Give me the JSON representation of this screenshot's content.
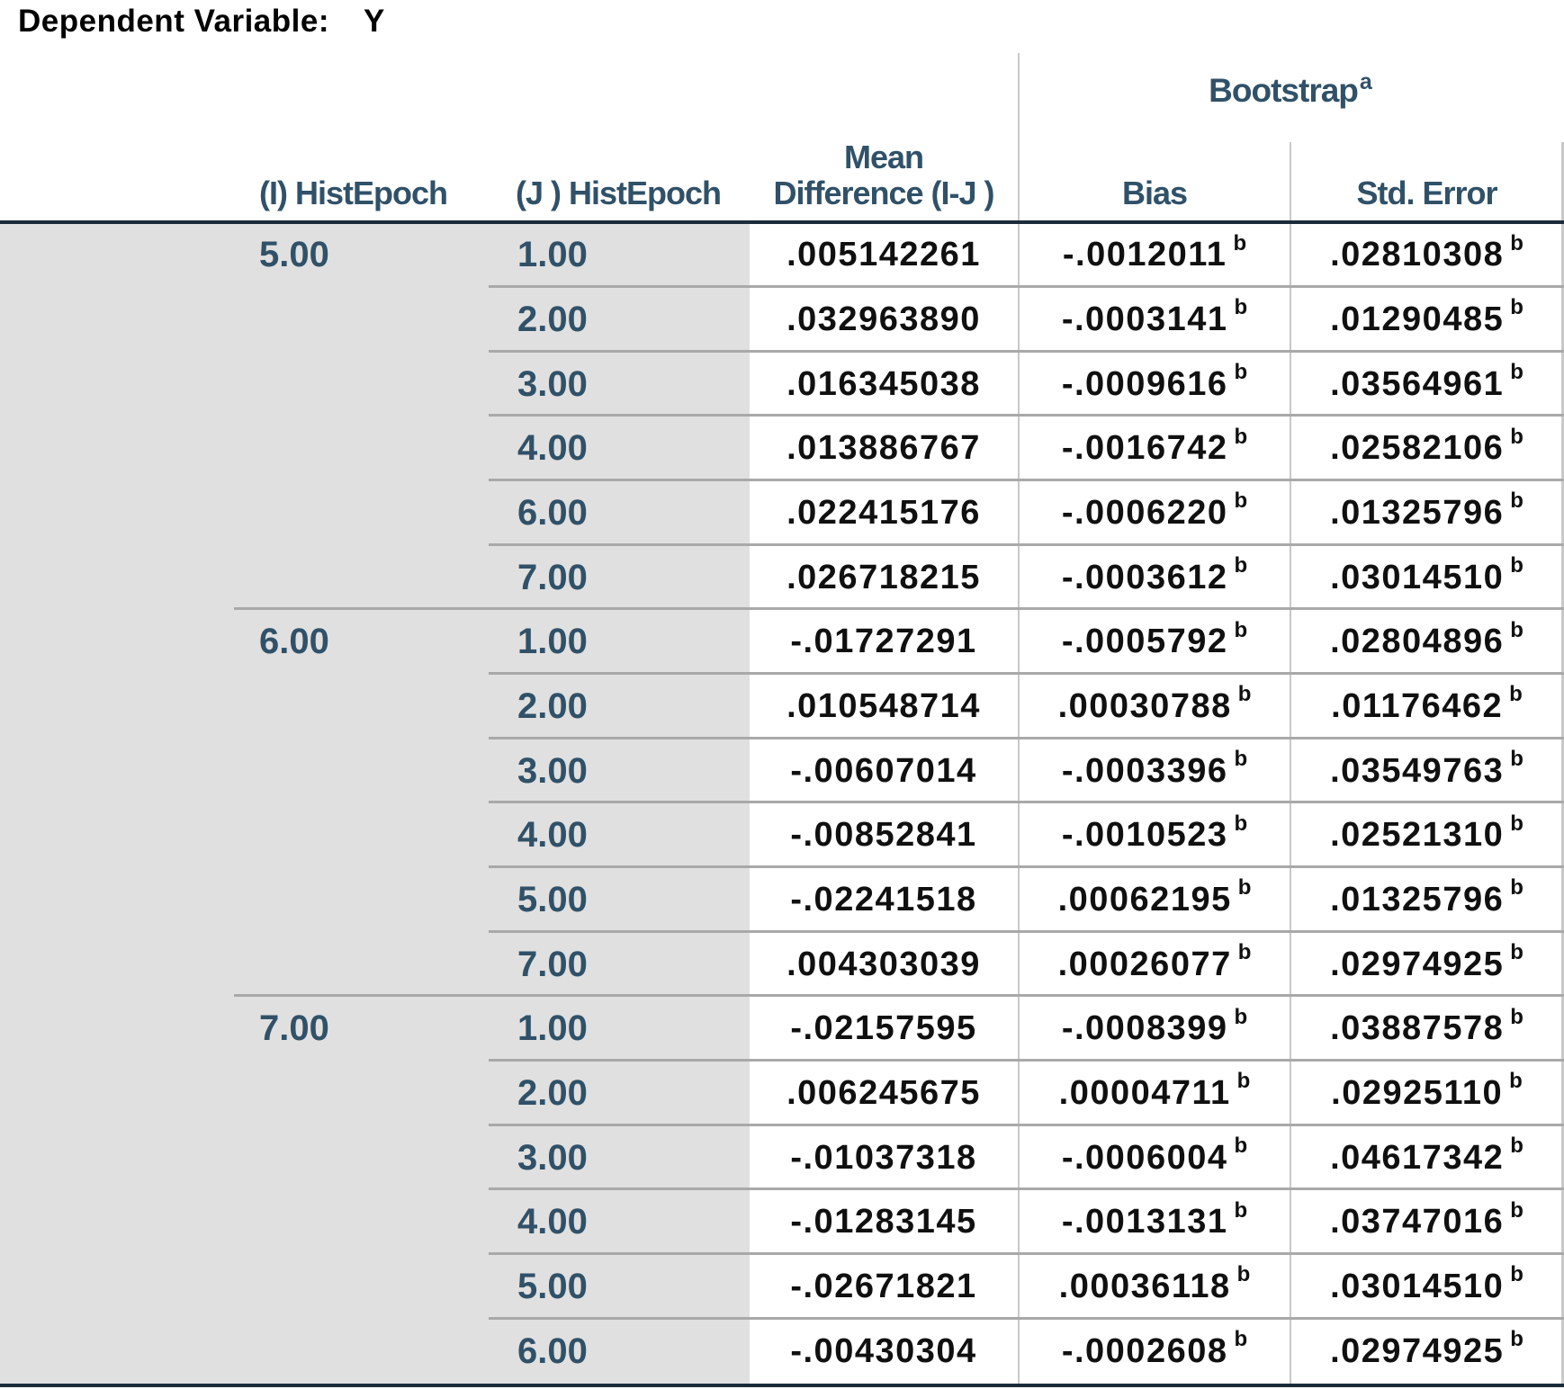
{
  "colors": {
    "header_text": "#305168",
    "data_text": "#101010",
    "title_text": "#000000",
    "row_header_bg": "#e0e0e0",
    "thick_line": "#1b2b3a",
    "thin_line": "#a9a9a9",
    "light_line": "#c9c9c9",
    "page_bg": "#ffffff"
  },
  "title": {
    "label": "Dependent Variable:",
    "value": "Y"
  },
  "table": {
    "headers": {
      "bootstrap": "Bootstrap",
      "bootstrap_footnote": "a",
      "i_col": "(I) HistEpoch",
      "j_col": "(J ) HistEpoch",
      "mean_line1": "Mean",
      "mean_line2": "Difference (I-J )",
      "bias": "Bias",
      "std_error": "Std. Error"
    },
    "footnote_marker": "b",
    "groups": [
      {
        "i": "5.00",
        "rows": [
          {
            "j": "1.00",
            "mean_diff": ".005142261",
            "bias": "-.0012011",
            "bias_sup": "b",
            "std_error": ".02810308",
            "std_sup": "b"
          },
          {
            "j": "2.00",
            "mean_diff": ".032963890",
            "bias": "-.0003141",
            "bias_sup": "b",
            "std_error": ".01290485",
            "std_sup": "b"
          },
          {
            "j": "3.00",
            "mean_diff": ".016345038",
            "bias": "-.0009616",
            "bias_sup": "b",
            "std_error": ".03564961",
            "std_sup": "b"
          },
          {
            "j": "4.00",
            "mean_diff": ".013886767",
            "bias": "-.0016742",
            "bias_sup": "b",
            "std_error": ".02582106",
            "std_sup": "b"
          },
          {
            "j": "6.00",
            "mean_diff": ".022415176",
            "bias": "-.0006220",
            "bias_sup": "b",
            "std_error": ".01325796",
            "std_sup": "b"
          },
          {
            "j": "7.00",
            "mean_diff": ".026718215",
            "bias": "-.0003612",
            "bias_sup": "b",
            "std_error": ".03014510",
            "std_sup": "b"
          }
        ]
      },
      {
        "i": "6.00",
        "rows": [
          {
            "j": "1.00",
            "mean_diff": "-.01727291",
            "bias": "-.0005792",
            "bias_sup": "b",
            "std_error": ".02804896",
            "std_sup": "b"
          },
          {
            "j": "2.00",
            "mean_diff": ".010548714",
            "bias": ".00030788",
            "bias_sup": "b",
            "std_error": ".01176462",
            "std_sup": "b"
          },
          {
            "j": "3.00",
            "mean_diff": "-.00607014",
            "bias": "-.0003396",
            "bias_sup": "b",
            "std_error": ".03549763",
            "std_sup": "b"
          },
          {
            "j": "4.00",
            "mean_diff": "-.00852841",
            "bias": "-.0010523",
            "bias_sup": "b",
            "std_error": ".02521310",
            "std_sup": "b"
          },
          {
            "j": "5.00",
            "mean_diff": "-.02241518",
            "bias": ".00062195",
            "bias_sup": "b",
            "std_error": ".01325796",
            "std_sup": "b"
          },
          {
            "j": "7.00",
            "mean_diff": ".004303039",
            "bias": ".00026077",
            "bias_sup": "b",
            "std_error": ".02974925",
            "std_sup": "b"
          }
        ]
      },
      {
        "i": "7.00",
        "rows": [
          {
            "j": "1.00",
            "mean_diff": "-.02157595",
            "bias": "-.0008399",
            "bias_sup": "b",
            "std_error": ".03887578",
            "std_sup": "b"
          },
          {
            "j": "2.00",
            "mean_diff": ".006245675",
            "bias": ".00004711",
            "bias_sup": "b",
            "std_error": ".02925110",
            "std_sup": "b"
          },
          {
            "j": "3.00",
            "mean_diff": "-.01037318",
            "bias": "-.0006004",
            "bias_sup": "b",
            "std_error": ".04617342",
            "std_sup": "b"
          },
          {
            "j": "4.00",
            "mean_diff": "-.01283145",
            "bias": "-.0013131",
            "bias_sup": "b",
            "std_error": ".03747016",
            "std_sup": "b"
          },
          {
            "j": "5.00",
            "mean_diff": "-.02671821",
            "bias": ".00036118",
            "bias_sup": "b",
            "std_error": ".03014510",
            "std_sup": "b"
          },
          {
            "j": "6.00",
            "mean_diff": "-.00430304",
            "bias": "-.0002608",
            "bias_sup": "b",
            "std_error": ".02974925",
            "std_sup": "b"
          }
        ]
      }
    ]
  }
}
